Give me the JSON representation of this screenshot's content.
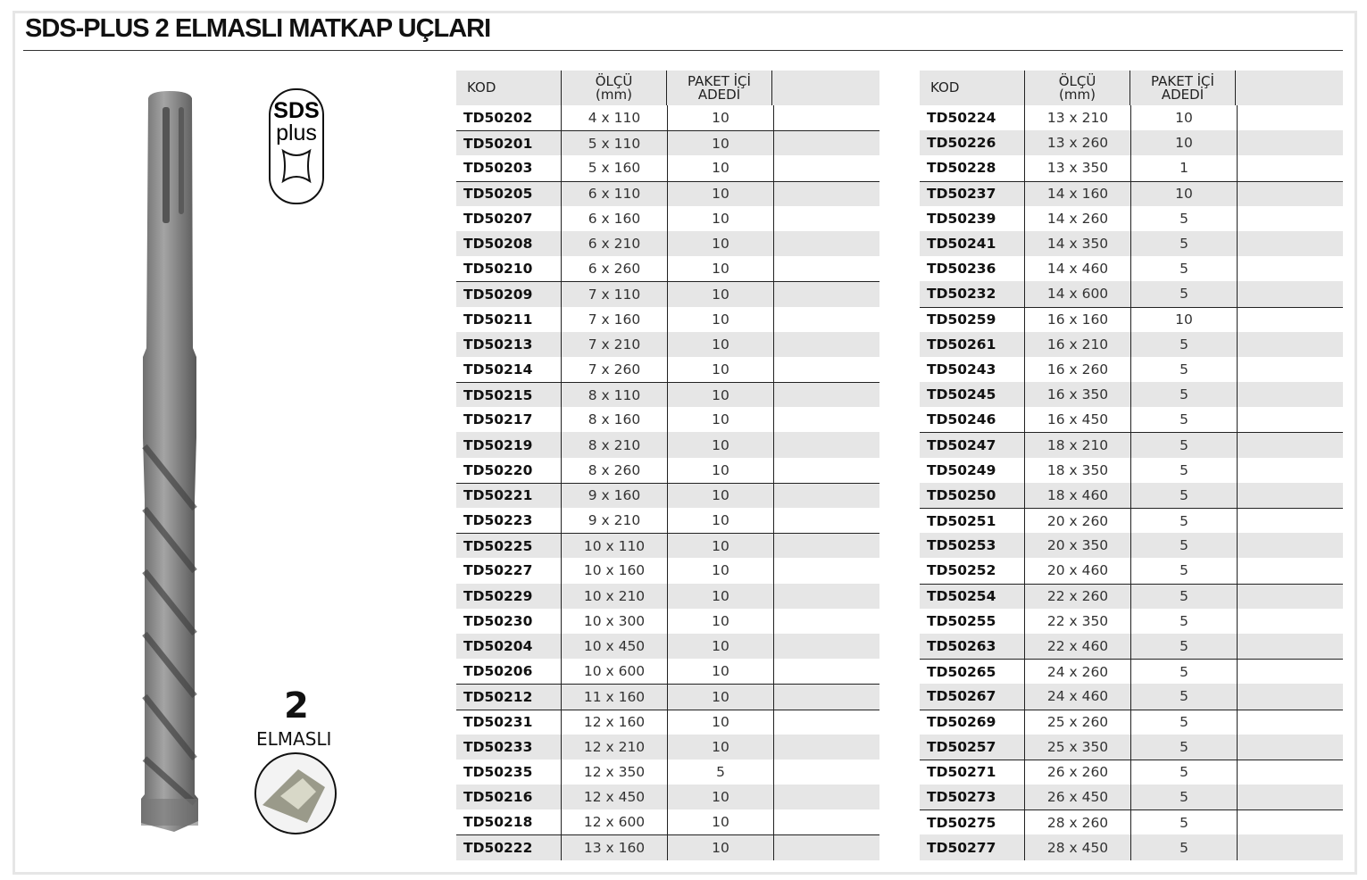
{
  "title": "SDS-PLUS 2 ELMASLI MATKAP UÇLARI",
  "logo": {
    "line1": "SDS",
    "line2": "plus"
  },
  "badge": {
    "number": "2",
    "label": "ELMASLI"
  },
  "headers": {
    "kod": "KOD",
    "olcu": "ÖLÇÜ (mm)",
    "paket": "PAKET İÇİ ADEDİ"
  },
  "tables": [
    [
      [
        "TD50202",
        "4 x 110",
        "10"
      ],
      [
        "TD50201",
        "5 x 110",
        "10"
      ],
      [
        "TD50203",
        "5 x 160",
        "10"
      ],
      [
        "TD50205",
        "6 x 110",
        "10"
      ],
      [
        "TD50207",
        "6 x 160",
        "10"
      ],
      [
        "TD50208",
        "6 x 210",
        "10"
      ],
      [
        "TD50210",
        "6 x 260",
        "10"
      ],
      [
        "TD50209",
        "7 x 110",
        "10"
      ],
      [
        "TD50211",
        "7 x 160",
        "10"
      ],
      [
        "TD50213",
        "7 x 210",
        "10"
      ],
      [
        "TD50214",
        "7 x 260",
        "10"
      ],
      [
        "TD50215",
        "8 x 110",
        "10"
      ],
      [
        "TD50217",
        "8 x 160",
        "10"
      ],
      [
        "TD50219",
        "8 x 210",
        "10"
      ],
      [
        "TD50220",
        "8 x 260",
        "10"
      ],
      [
        "TD50221",
        "9 x 160",
        "10"
      ],
      [
        "TD50223",
        "9 x 210",
        "10"
      ],
      [
        "TD50225",
        "10 x 110",
        "10"
      ],
      [
        "TD50227",
        "10 x 160",
        "10"
      ],
      [
        "TD50229",
        "10 x 210",
        "10"
      ],
      [
        "TD50230",
        "10 x 300",
        "10"
      ],
      [
        "TD50204",
        "10 x 450",
        "10"
      ],
      [
        "TD50206",
        "10 x 600",
        "10"
      ],
      [
        "TD50212",
        "11 x 160",
        "10"
      ],
      [
        "TD50231",
        "12 x 160",
        "10"
      ],
      [
        "TD50233",
        "12 x 210",
        "10"
      ],
      [
        "TD50235",
        "12 x 350",
        "5"
      ],
      [
        "TD50216",
        "12 x 450",
        "10"
      ],
      [
        "TD50218",
        "12 x 600",
        "10"
      ],
      [
        "TD50222",
        "13 x 160",
        "10"
      ]
    ],
    [
      [
        "TD50224",
        "13 x 210",
        "10"
      ],
      [
        "TD50226",
        "13 x 260",
        "10"
      ],
      [
        "TD50228",
        "13 x 350",
        "1"
      ],
      [
        "TD50237",
        "14 x 160",
        "10"
      ],
      [
        "TD50239",
        "14 x 260",
        "5"
      ],
      [
        "TD50241",
        "14 x 350",
        "5"
      ],
      [
        "TD50236",
        "14 x 460",
        "5"
      ],
      [
        "TD50232",
        "14 x 600",
        "5"
      ],
      [
        "TD50259",
        "16 x 160",
        "10"
      ],
      [
        "TD50261",
        "16 x 210",
        "5"
      ],
      [
        "TD50243",
        "16 x 260",
        "5"
      ],
      [
        "TD50245",
        "16 x 350",
        "5"
      ],
      [
        "TD50246",
        "16 x 450",
        "5"
      ],
      [
        "TD50247",
        "18 x 210",
        "5"
      ],
      [
        "TD50249",
        "18 x 350",
        "5"
      ],
      [
        "TD50250",
        "18 x 460",
        "5"
      ],
      [
        "TD50251",
        "20 x 260",
        "5"
      ],
      [
        "TD50253",
        "20 x 350",
        "5"
      ],
      [
        "TD50252",
        "20 x 460",
        "5"
      ],
      [
        "TD50254",
        "22 x 260",
        "5"
      ],
      [
        "TD50255",
        "22 x 350",
        "5"
      ],
      [
        "TD50263",
        "22 x 460",
        "5"
      ],
      [
        "TD50265",
        "24 x 260",
        "5"
      ],
      [
        "TD50267",
        "24 x 460",
        "5"
      ],
      [
        "TD50269",
        "25 x 260",
        "5"
      ],
      [
        "TD50257",
        "25 x 350",
        "5"
      ],
      [
        "TD50271",
        "26 x 260",
        "5"
      ],
      [
        "TD50273",
        "26 x 450",
        "5"
      ],
      [
        "TD50275",
        "28 x 260",
        "5"
      ],
      [
        "TD50277",
        "28 x 450",
        "5"
      ]
    ]
  ]
}
